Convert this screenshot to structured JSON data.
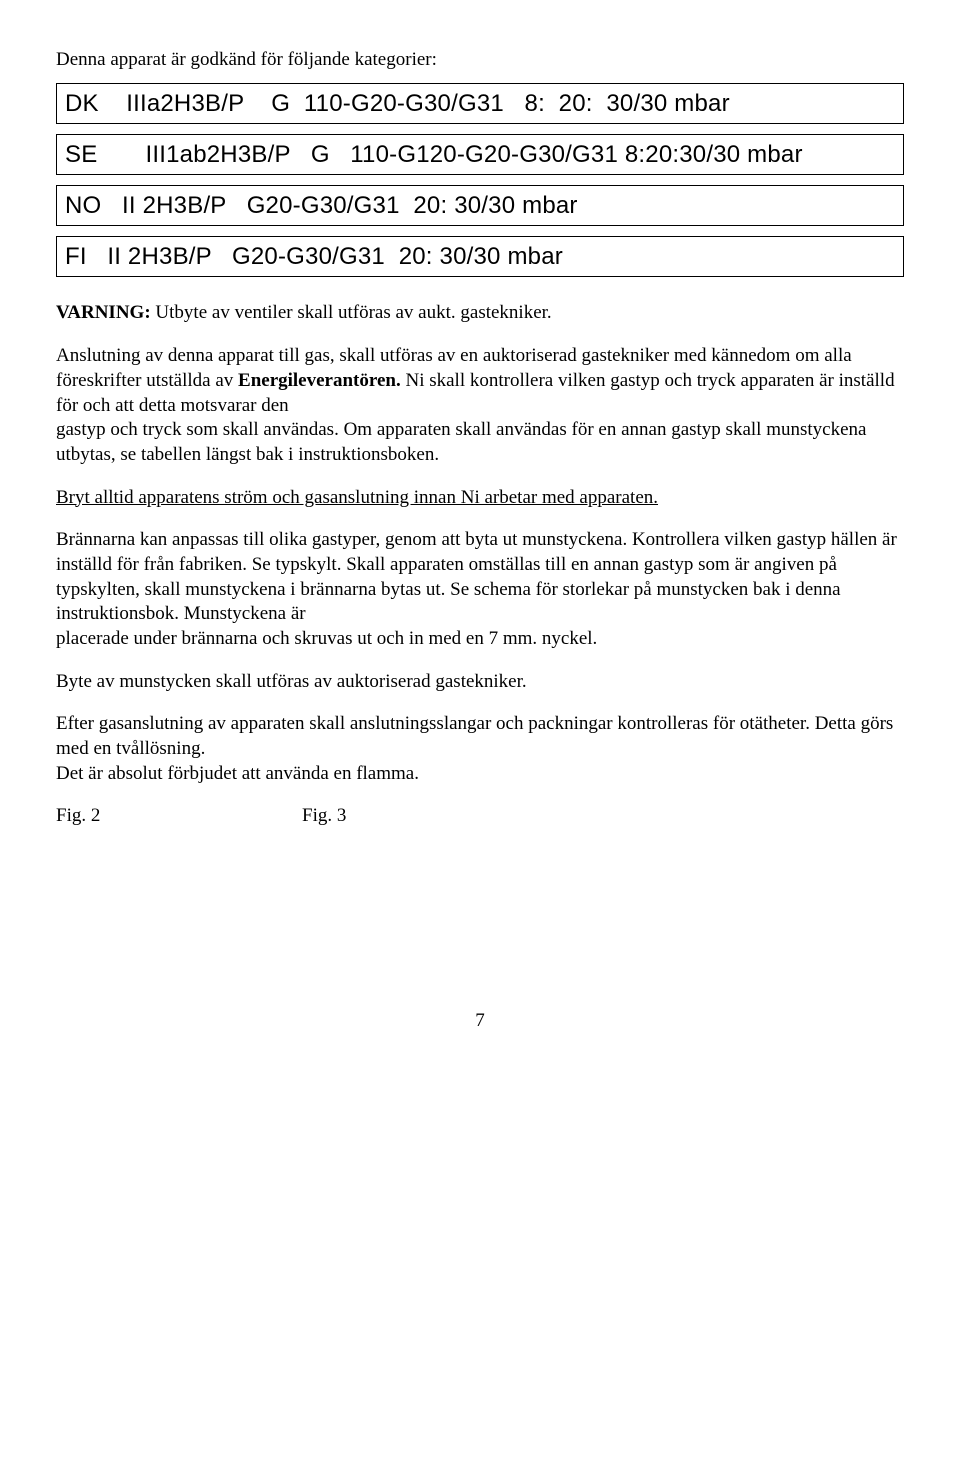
{
  "intro": "Denna apparat är godkänd för följande kategorier:",
  "categories": [
    "DK    IIIa2H3B/P    G  110-G20-G30/G31   8:  20:  30/30 mbar",
    "SE       III1ab2H3B/P   G   110-G120-G20-G30/G31 8:20:30/30 mbar",
    "NO   II 2H3B/P   G20-G30/G31  20: 30/30 mbar",
    "FI   II 2H3B/P   G20-G30/G31  20: 30/30 mbar"
  ],
  "warning_label": "VARNING:",
  "warning_text": " Utbyte av ventiler skall utföras av aukt. gastekniker.",
  "p1a": "Anslutning av denna apparat till gas, skall utföras av en auktoriserad gastekniker med kännedom om alla föreskrifter utställda av ",
  "p1b": "Energileverantören.",
  "p1c": " Ni skall kontrollera vilken gastyp och tryck apparaten är inställd för och att detta motsvarar den",
  "p1d": "gastyp och tryck som skall användas. Om apparaten skall användas för en annan gastyp skall munstyckena utbytas, se tabellen längst bak i instruktionsboken.",
  "p2": "Bryt alltid apparatens ström och gasanslutning innan Ni arbetar med apparaten.",
  "p3a": "Brännarna kan anpassas till olika gastyper, genom att byta ut munstyckena. Kontrollera vilken gastyp hällen är inställd för från fabriken. Se typskylt. Skall apparaten omställas till en annan gastyp som är angiven på typskylten, skall munstyckena i brännarna bytas ut. Se schema för storlekar på munstycken bak i denna instruktionsbok. Munstyckena är",
  "p3b": "placerade under brännarna och skruvas ut och in med en 7 mm. nyckel.",
  "p4": "Byte av munstycken skall utföras av auktoriserad gastekniker.",
  "p5a": "Efter gasanslutning av apparaten skall anslutningsslangar och packningar kontrolleras för otätheter.  Detta görs med en tvållösning.",
  "p5b": "Det är absolut förbjudet att använda en flamma.",
  "fig1": "Fig. 2",
  "fig2": "Fig. 3",
  "pagenum": "7"
}
